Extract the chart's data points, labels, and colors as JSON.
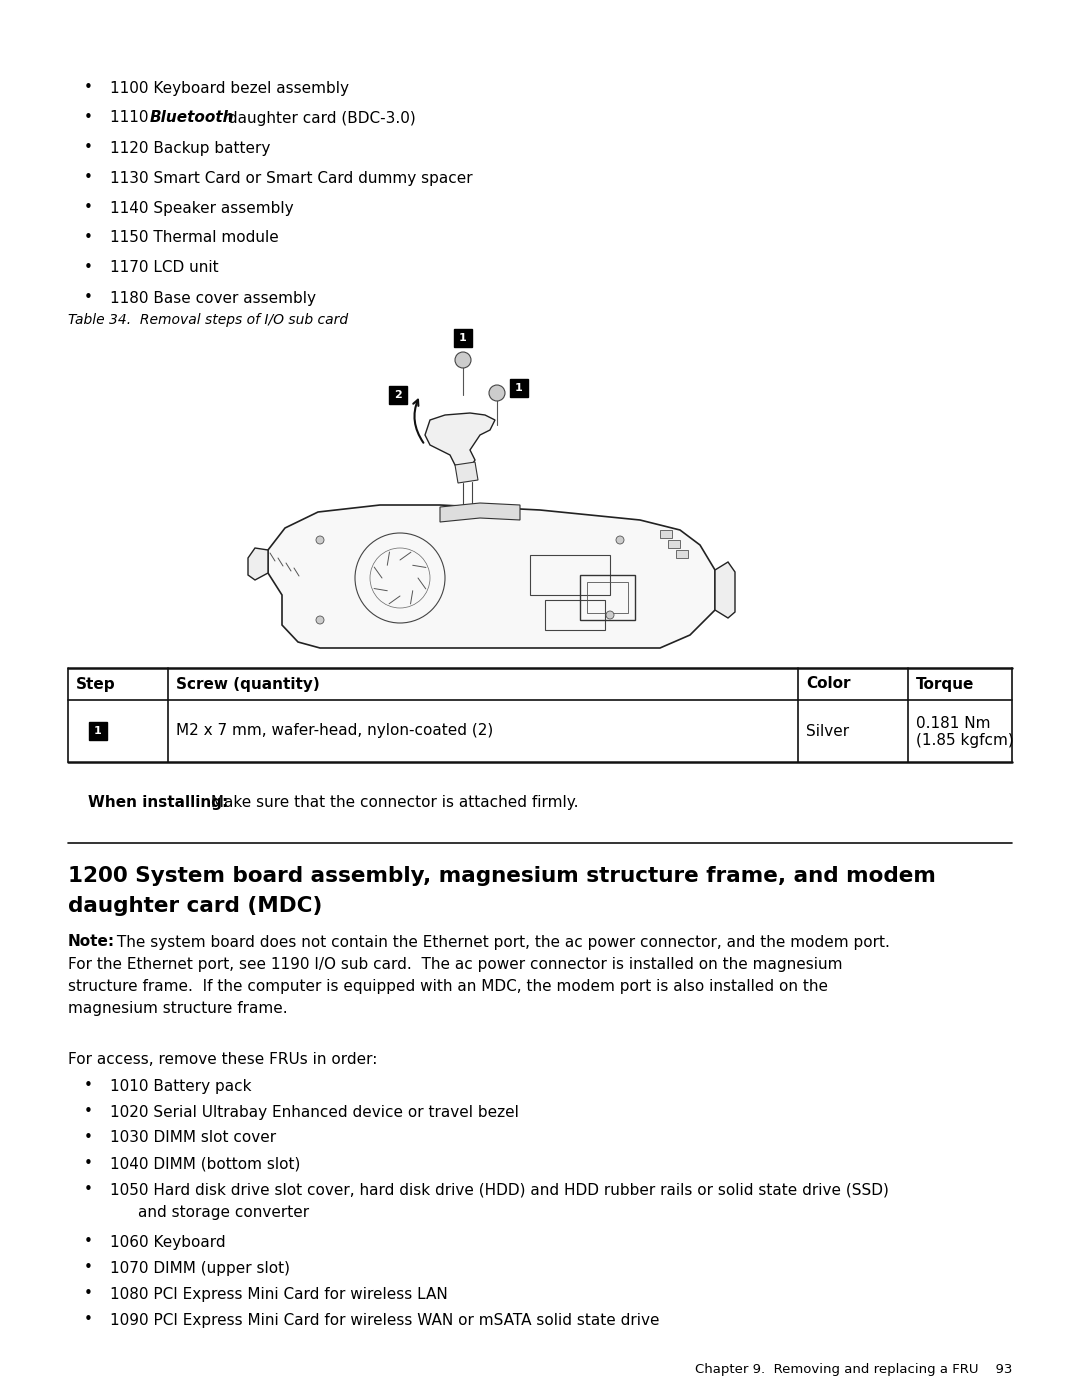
{
  "bg_color": "#ffffff",
  "text_color": "#000000",
  "bullet_items_top": [
    "1100 Keyboard bezel assembly",
    "1120 Backup battery",
    "1130 Smart Card or Smart Card dummy spacer",
    "1140 Speaker assembly",
    "1150 Thermal module",
    "1170 LCD unit",
    "1180 Base cover assembly"
  ],
  "bluetooth_prefix": "1110 ",
  "bluetooth_bold_italic": "Bluetooth",
  "bluetooth_suffix": " daughter card (BDC-3.0)",
  "table_caption": "Table 34.  Removal steps of I/O sub card",
  "table_header": [
    "Step",
    "Screw (quantity)",
    "Color",
    "Torque"
  ],
  "table_row_screw": "M2 x 7 mm, wafer-head, nylon-coated (2)",
  "table_row_color": "Silver",
  "table_row_torque1": "0.181 Nm",
  "table_row_torque2": "(1.85 kgfcm)",
  "when_installing_bold": "When installing:",
  "when_installing_text": " Make sure that the connector is attached firmly.",
  "section_title_line1": "1200 System board assembly, magnesium structure frame, and modem",
  "section_title_line2": "daughter card (MDC)",
  "note_bold": "Note:",
  "note_text1": " The system board does not contain the Ethernet port, the ac power connector, and the modem port.",
  "note_text2": "For the Ethernet port, see 1190 I/O sub card.  The ac power connector is installed on the magnesium",
  "note_text3": "structure frame.  If the computer is equipped with an MDC, the modem port is also installed on the",
  "note_text4": "magnesium structure frame.",
  "for_access_text": "For access, remove these FRUs in order:",
  "bullet_items_bottom": [
    "1010 Battery pack",
    "1020 Serial Ultrabay Enhanced device or travel bezel",
    "1030 DIMM slot cover",
    "1040 DIMM (bottom slot)",
    "1060 Keyboard",
    "1070 DIMM (upper slot)",
    "1080 PCI Express Mini Card for wireless LAN",
    "1090 PCI Express Mini Card for wireless WAN or mSATA solid state drive"
  ],
  "bullet_1050_line1": "1050 Hard disk drive slot cover, hard disk drive (HDD) and HDD rubber rails or solid state drive (SSD)",
  "bullet_1050_line2": "       and storage converter",
  "footer_text": "Chapter 9.  Removing and replacing a FRU    93",
  "step_badge_color": "#000000",
  "step_badge_text_color": "#ffffff"
}
